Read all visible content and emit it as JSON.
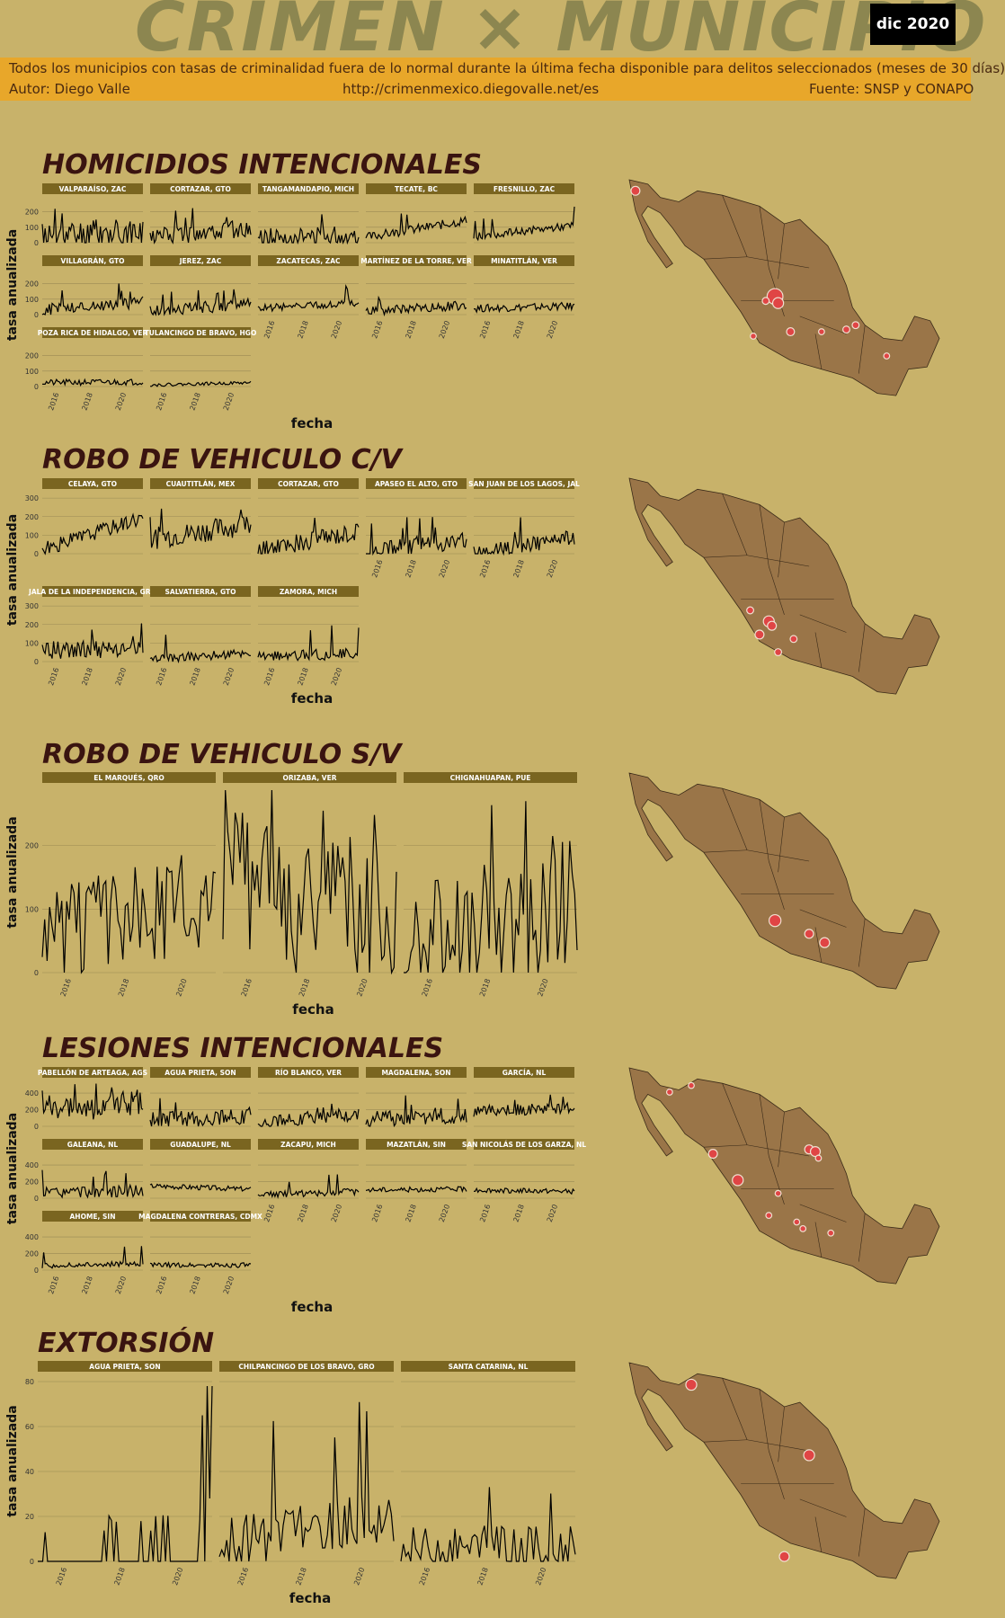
{
  "header": {
    "title": "CRIMEN × MUNICIPIO",
    "date": "dic 2020",
    "subtitle": "Todos los municipios con tasas de criminalidad fuera de lo normal durante la última fecha disponible para delitos seleccionados (meses de 30 días)",
    "author": "Autor: Diego Valle",
    "url": "http://crimenmexico.diegovalle.net/es",
    "source": "Fuente: SNSP y CONAPO"
  },
  "colors": {
    "background": "#c8b26a",
    "banner": "#e8a72a",
    "panel_header": "#7a6520",
    "map_fill": "#9a7548",
    "marker": "#e04545",
    "heading": "#3a1410"
  },
  "axis_text": {
    "ylabel": "tasa anualizada",
    "xlabel": "fecha",
    "xticks": [
      "2016",
      "2018",
      "2020"
    ]
  },
  "chart_data": [
    {
      "type": "line",
      "title": "HOMICIDIOS INTENCIONALES",
      "xlabel": "fecha",
      "ylabel": "tasa anualizada",
      "xlim": [
        2015.0,
        2021.0
      ],
      "ylim": [
        0,
        280
      ],
      "yticks": [
        0,
        100,
        200
      ],
      "xticks": [
        "2016",
        "2018",
        "2020"
      ],
      "grid": true,
      "series": [
        {
          "name": "VALPARAÍSO, ZAC",
          "seed": 11,
          "base": 40,
          "trend": 20,
          "noise": 100,
          "spikes": 5
        },
        {
          "name": "CORTAZAR, GTO",
          "seed": 12,
          "base": 35,
          "trend": 60,
          "noise": 60,
          "spikes": 3
        },
        {
          "name": "TANGAMANDAPIO, MICH",
          "seed": 13,
          "base": 25,
          "trend": 20,
          "noise": 70,
          "spikes": 3
        },
        {
          "name": "TECATE, BC",
          "seed": 14,
          "base": 35,
          "trend": 110,
          "noise": 30,
          "spikes": 1
        },
        {
          "name": "FRESNILLO, ZAC",
          "seed": 15,
          "base": 40,
          "trend": 70,
          "noise": 25,
          "spikes": 1
        },
        {
          "name": "VILLAGRÁN, GTO",
          "seed": 16,
          "base": 30,
          "trend": 50,
          "noise": 40,
          "spikes": 2
        },
        {
          "name": "JEREZ, ZAC",
          "seed": 17,
          "base": 20,
          "trend": 50,
          "noise": 40,
          "spikes": 2
        },
        {
          "name": "ZACATECAS, ZAC",
          "seed": 18,
          "base": 40,
          "trend": 40,
          "noise": 25,
          "spikes": 1
        },
        {
          "name": "MARTÍNEZ DE LA TORRE, VER",
          "seed": 19,
          "base": 20,
          "trend": 40,
          "noise": 30,
          "spikes": 1
        },
        {
          "name": "MINATITLÁN, VER",
          "seed": 20,
          "base": 40,
          "trend": 15,
          "noise": 25,
          "spikes": 0
        },
        {
          "name": "POZA RICA DE HIDALGO, VER",
          "seed": 21,
          "base": 25,
          "trend": 5,
          "noise": 20,
          "spikes": 0
        },
        {
          "name": "TULANCINGO DE BRAVO, HGO",
          "seed": 22,
          "base": 10,
          "trend": 15,
          "noise": 10,
          "spikes": 0
        }
      ],
      "map_markers": [
        [
          0.02,
          0.05,
          9
        ],
        [
          0.47,
          0.53,
          16
        ],
        [
          0.48,
          0.56,
          11
        ],
        [
          0.44,
          0.55,
          7
        ],
        [
          0.73,
          0.66,
          7
        ],
        [
          0.7,
          0.68,
          7
        ],
        [
          0.52,
          0.69,
          8
        ],
        [
          0.62,
          0.69,
          6
        ],
        [
          0.4,
          0.71,
          6
        ],
        [
          0.83,
          0.8,
          6
        ]
      ]
    },
    {
      "type": "line",
      "title": "ROBO DE VEHICULO C/V",
      "xlabel": "fecha",
      "ylabel": "tasa anualizada",
      "xlim": [
        2015.0,
        2021.0
      ],
      "ylim": [
        0,
        320
      ],
      "yticks": [
        0,
        100,
        200,
        300
      ],
      "xticks": [
        "2016",
        "2018",
        "2020"
      ],
      "grid": true,
      "series": [
        {
          "name": "CELAYA, GTO",
          "seed": 31,
          "base": 20,
          "trend": 180,
          "noise": 40,
          "spikes": 1
        },
        {
          "name": "CUAUTITLÁN, MEX",
          "seed": 32,
          "base": 80,
          "trend": 80,
          "noise": 60,
          "spikes": 1
        },
        {
          "name": "CORTAZAR, GTO",
          "seed": 33,
          "base": 15,
          "trend": 110,
          "noise": 50,
          "spikes": 1
        },
        {
          "name": "APASEO EL ALTO, GTO",
          "seed": 34,
          "base": 20,
          "trend": 50,
          "noise": 50,
          "spikes": 2
        },
        {
          "name": "SAN JUAN DE LOS LAGOS, JAL",
          "seed": 35,
          "base": 0,
          "trend": 90,
          "noise": 40,
          "spikes": 2
        },
        {
          "name": "JALA DE LA INDEPENDENCIA, GRO",
          "seed": 36,
          "base": 60,
          "trend": 0,
          "noise": 50,
          "spikes": 2
        },
        {
          "name": "SALVATIERRA, GTO",
          "seed": 37,
          "base": 10,
          "trend": 40,
          "noise": 25,
          "spikes": 1
        },
        {
          "name": "ZAMORA, MICH",
          "seed": 38,
          "base": 25,
          "trend": 20,
          "noise": 30,
          "spikes": 1
        }
      ],
      "map_markers": [
        [
          0.45,
          0.65,
          11
        ],
        [
          0.46,
          0.67,
          9
        ],
        [
          0.42,
          0.71,
          9
        ],
        [
          0.53,
          0.73,
          7
        ],
        [
          0.39,
          0.6,
          7
        ],
        [
          0.48,
          0.79,
          7
        ]
      ]
    },
    {
      "type": "line",
      "title": "ROBO DE VEHICULO S/V",
      "xlabel": "fecha",
      "ylabel": "tasa anualizada",
      "xlim": [
        2015.0,
        2021.0
      ],
      "ylim": [
        0,
        290
      ],
      "yticks": [
        0,
        100,
        200
      ],
      "xticks": [
        "2016",
        "2018",
        "2020"
      ],
      "grid": true,
      "series": [
        {
          "name": "EL MARQUÉS, QRO",
          "seed": 51,
          "base": 50,
          "trend": 70,
          "noise": 80,
          "spikes": 3
        },
        {
          "name": "ORIZABA, VER",
          "seed": 52,
          "base": 130,
          "trend": -50,
          "noise": 120,
          "spikes": 4
        },
        {
          "name": "CHIGNAHUAPAN, PUE",
          "seed": 53,
          "base": 20,
          "trend": 90,
          "noise": 110,
          "spikes": 4
        }
      ],
      "map_markers": [
        [
          0.47,
          0.67,
          12
        ],
        [
          0.58,
          0.73,
          9
        ],
        [
          0.63,
          0.77,
          10
        ]
      ]
    },
    {
      "type": "line",
      "title": "LESIONES INTENCIONALES",
      "xlabel": "fecha",
      "ylabel": "tasa anualizada",
      "xlim": [
        2015.0,
        2021.0
      ],
      "ylim": [
        0,
        520
      ],
      "yticks": [
        0,
        200,
        400
      ],
      "xticks": [
        "2016",
        "2018",
        "2020"
      ],
      "grid": true,
      "series": [
        {
          "name": "PABELLÓN DE ARTEAGA, AGS",
          "seed": 61,
          "base": 150,
          "trend": 150,
          "noise": 150,
          "spikes": 3
        },
        {
          "name": "AGUA PRIETA, SON",
          "seed": 62,
          "base": 70,
          "trend": 60,
          "noise": 100,
          "spikes": 3
        },
        {
          "name": "RÍO BLANCO, VER",
          "seed": 63,
          "base": 50,
          "trend": 100,
          "noise": 80,
          "spikes": 3
        },
        {
          "name": "MAGDALENA, SON",
          "seed": 64,
          "base": 80,
          "trend": 60,
          "noise": 100,
          "spikes": 3
        },
        {
          "name": "GARCÍA, NL",
          "seed": 65,
          "base": 180,
          "trend": 40,
          "noise": 70,
          "spikes": 1
        },
        {
          "name": "GALEANA, NL",
          "seed": 66,
          "base": 60,
          "trend": 30,
          "noise": 70,
          "spikes": 3
        },
        {
          "name": "GUADALUPE, NL",
          "seed": 67,
          "base": 150,
          "trend": -40,
          "noise": 30,
          "spikes": 0
        },
        {
          "name": "ZACAPU, MICH",
          "seed": 68,
          "base": 40,
          "trend": 40,
          "noise": 40,
          "spikes": 1
        },
        {
          "name": "MAZATLÁN, SIN",
          "seed": 69,
          "base": 100,
          "trend": 10,
          "noise": 30,
          "spikes": 0
        },
        {
          "name": "SAN NICOLÁS DE LOS GARZA, NL",
          "seed": 70,
          "base": 100,
          "trend": -20,
          "noise": 30,
          "spikes": 0
        },
        {
          "name": "AHOME, SIN",
          "seed": 71,
          "base": 50,
          "trend": 30,
          "noise": 30,
          "spikes": 1
        },
        {
          "name": "MAGDALENA CONTRERAS, CDMX",
          "seed": 72,
          "base": 60,
          "trend": 0,
          "noise": 30,
          "spikes": 0
        }
      ],
      "map_markers": [
        [
          0.2,
          0.08,
          6
        ],
        [
          0.13,
          0.11,
          6
        ],
        [
          0.58,
          0.37,
          9
        ],
        [
          0.6,
          0.38,
          10
        ],
        [
          0.61,
          0.41,
          6
        ],
        [
          0.27,
          0.39,
          9
        ],
        [
          0.35,
          0.51,
          11
        ],
        [
          0.48,
          0.57,
          6
        ],
        [
          0.56,
          0.73,
          6
        ],
        [
          0.65,
          0.75,
          6
        ],
        [
          0.45,
          0.67,
          6
        ],
        [
          0.54,
          0.7,
          6
        ]
      ]
    },
    {
      "type": "line",
      "title": "EXTORSIÓN",
      "xlabel": "fecha",
      "ylabel": "tasa anualizada",
      "xlim": [
        2015.0,
        2021.0
      ],
      "ylim": [
        0,
        82
      ],
      "yticks": [
        0,
        20,
        40,
        60,
        80
      ],
      "xticks": [
        "2016",
        "2018",
        "2020"
      ],
      "grid": true,
      "series": [
        {
          "name": "AGUA PRIETA, SON",
          "seed": 81,
          "base": 0,
          "trend": 0,
          "noise": 0,
          "spikes": 6,
          "spikeScale": 0.25,
          "tailSpikes": [
            65,
            0,
            78,
            28,
            78
          ]
        },
        {
          "name": "CHILPANCINGO DE LOS BRAVO, GRO",
          "seed": 82,
          "base": 8,
          "trend": 12,
          "noise": 12,
          "spikes": 2,
          "spikeScale": 0.6
        },
        {
          "name": "SANTA CATARINA, NL",
          "seed": 83,
          "base": 6,
          "trend": 0,
          "noise": 10,
          "spikes": 1,
          "spikeScale": 0.3
        }
      ],
      "map_markers": [
        [
          0.2,
          0.1,
          11
        ],
        [
          0.58,
          0.42,
          11
        ],
        [
          0.5,
          0.88,
          10
        ]
      ]
    }
  ]
}
